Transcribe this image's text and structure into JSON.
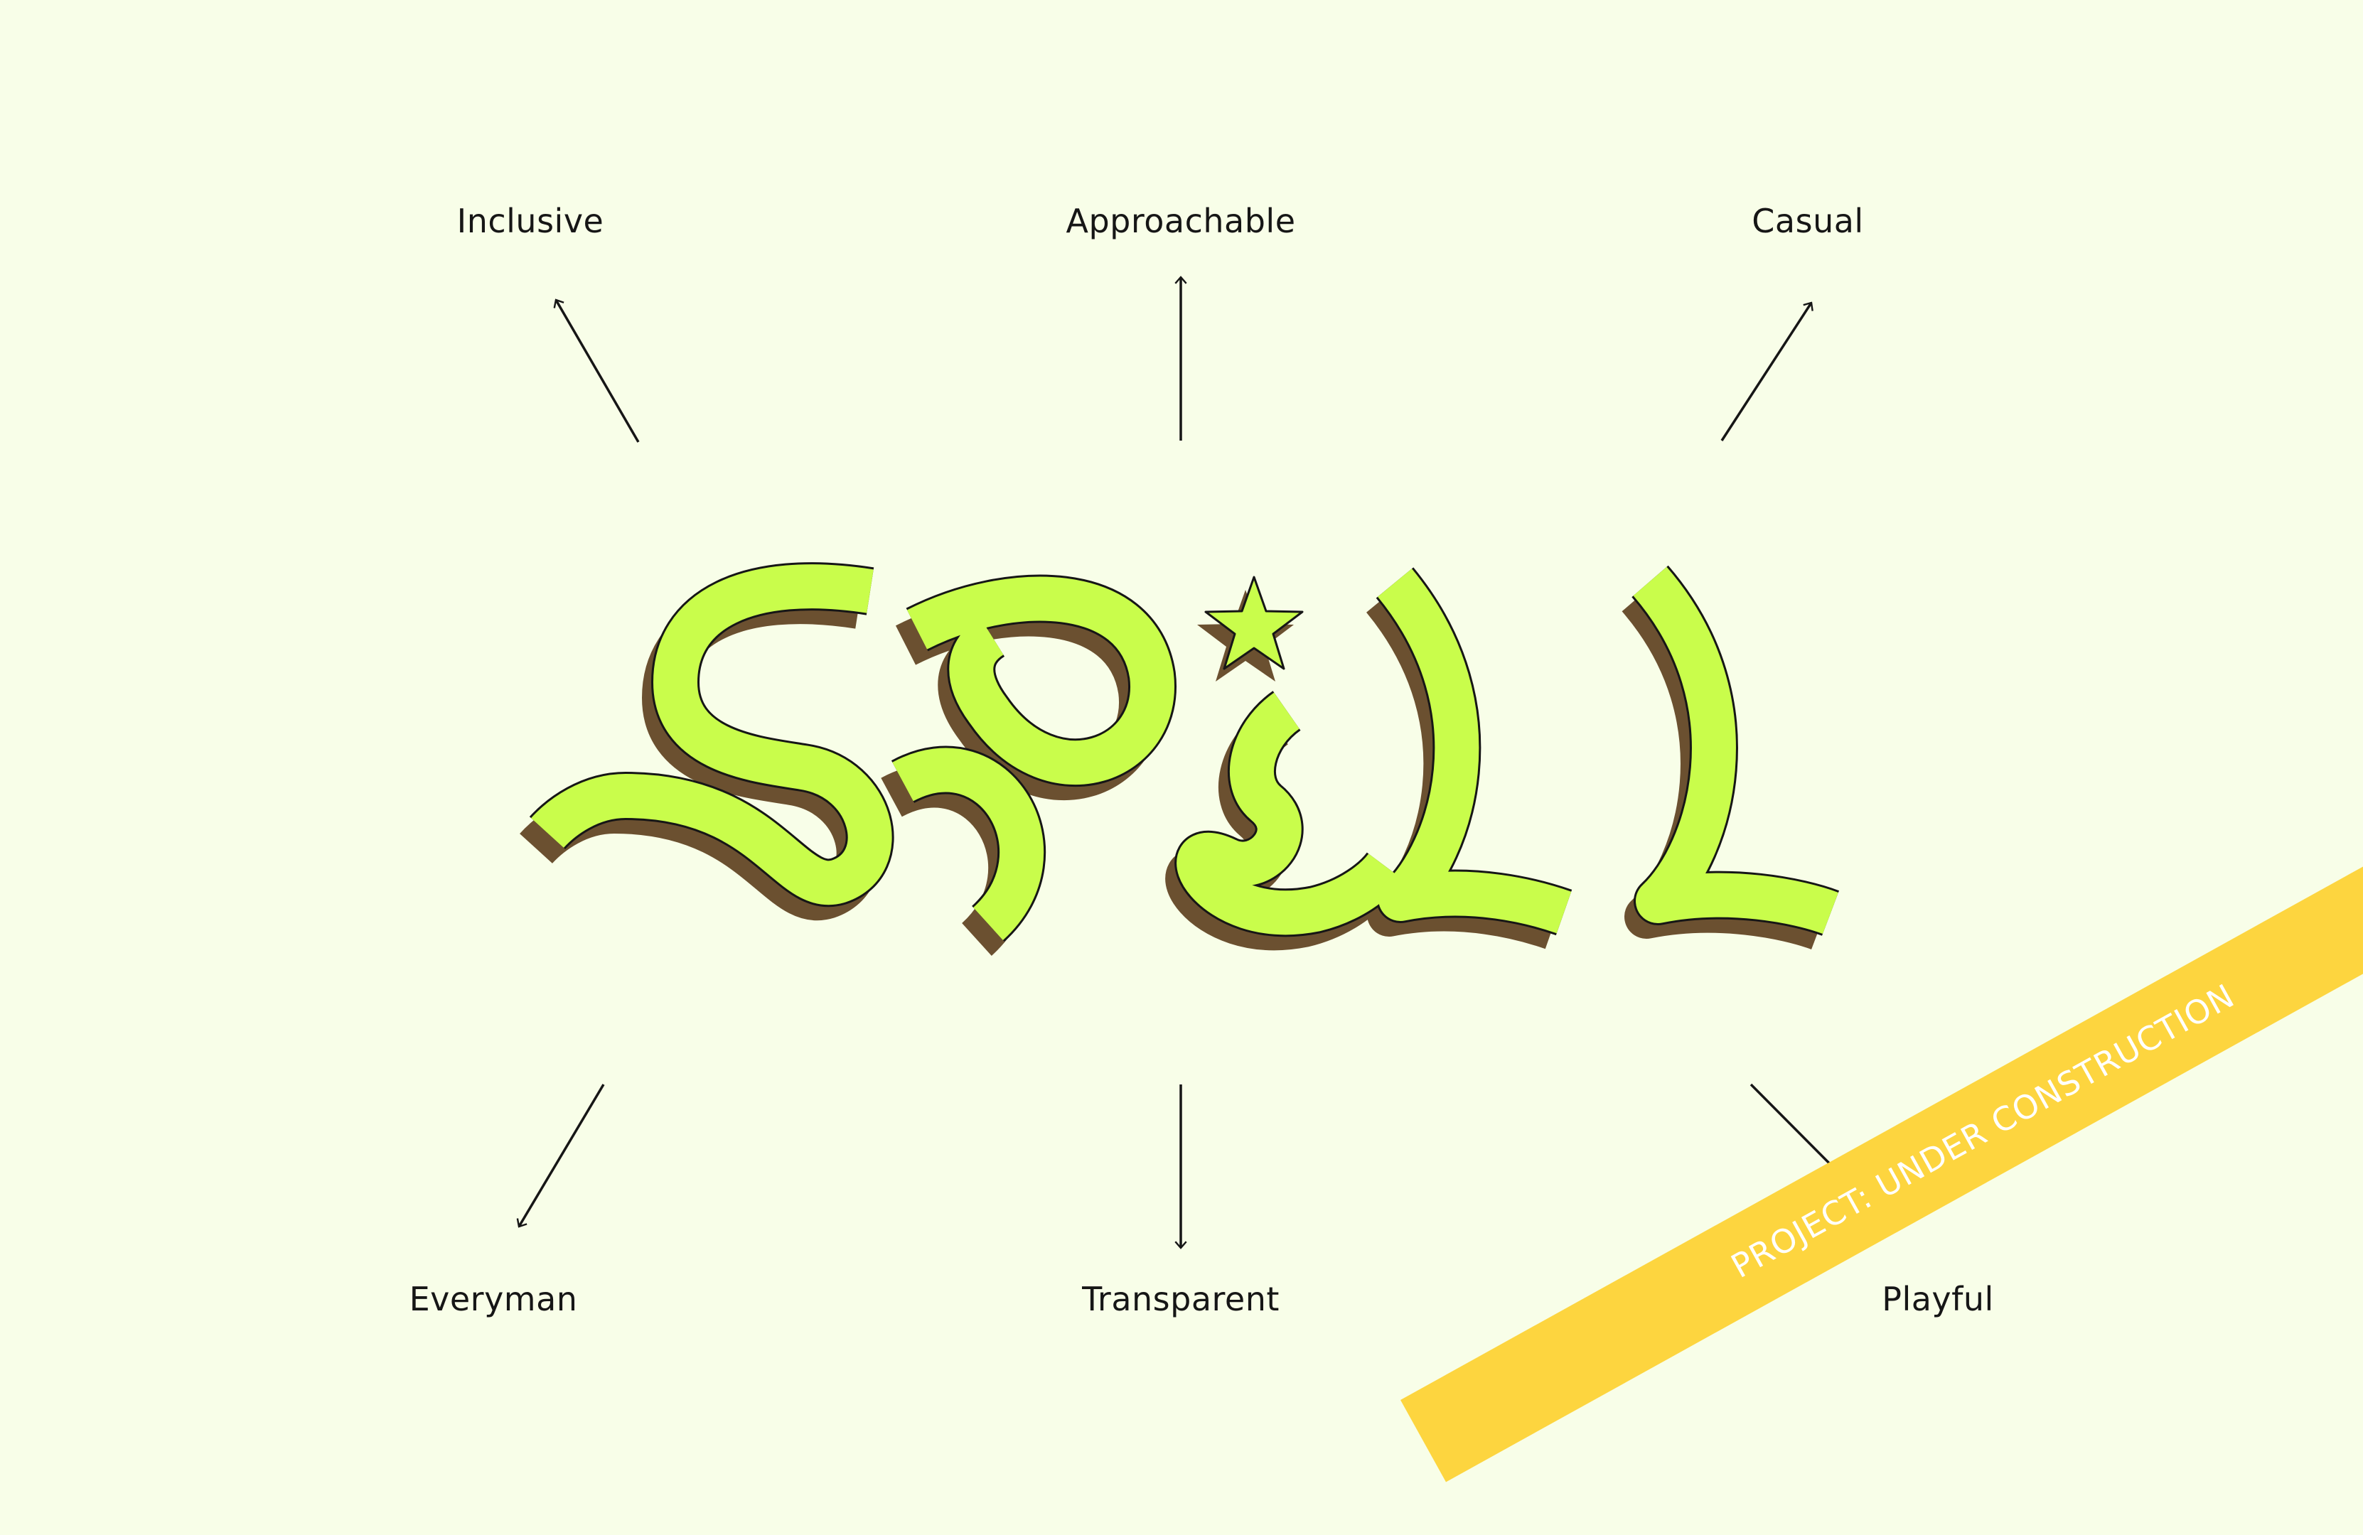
{
  "background_color": "#f8fee8",
  "accent_colors": {
    "logo_fill": "#c9fd4b",
    "logo_shadow": "#6b5030",
    "banner": "#fdd53f",
    "text": "#161616"
  },
  "logo": {
    "word": "SPILL",
    "ornament": "star-icon"
  },
  "attributes": {
    "top": [
      "Inclusive",
      "Approachable",
      "Casual"
    ],
    "bottom": [
      "Everyman",
      "Transparent",
      "Playful"
    ]
  },
  "banner": {
    "text": "PROJECT: UNDER CONSTRUCTION"
  }
}
